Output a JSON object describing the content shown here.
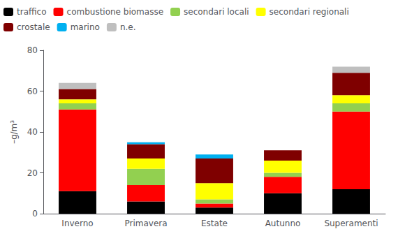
{
  "chart_data": {
    "type": "bar",
    "stacked": true,
    "categories": [
      "Inverno",
      "Primavera",
      "Estate",
      "Autunno",
      "Superamenti"
    ],
    "series": [
      {
        "name": "traffico",
        "color": "#000000",
        "values": [
          11,
          6,
          3,
          10,
          12
        ]
      },
      {
        "name": "combustione biomasse",
        "color": "#ff0000",
        "values": [
          40,
          8,
          2,
          8,
          38
        ]
      },
      {
        "name": "secondari locali",
        "color": "#92d050",
        "values": [
          3,
          8,
          2,
          2,
          4
        ]
      },
      {
        "name": "secondari regionali",
        "color": "#ffff00",
        "values": [
          2,
          5,
          8,
          6,
          4
        ]
      },
      {
        "name": "crostale",
        "color": "#7f0000",
        "values": [
          5,
          7,
          12,
          5,
          11
        ]
      },
      {
        "name": "marino",
        "color": "#00b0f0",
        "values": [
          0,
          1,
          2,
          0,
          0
        ]
      },
      {
        "name": "n.e.",
        "color": "#bfbfbf",
        "values": [
          3,
          0,
          0,
          0,
          3
        ]
      }
    ],
    "ylabel": "–g/m³",
    "ylim": [
      0,
      80
    ],
    "yticks": [
      0,
      20,
      40,
      60,
      80
    ],
    "grid": false,
    "legend": "upper left"
  }
}
